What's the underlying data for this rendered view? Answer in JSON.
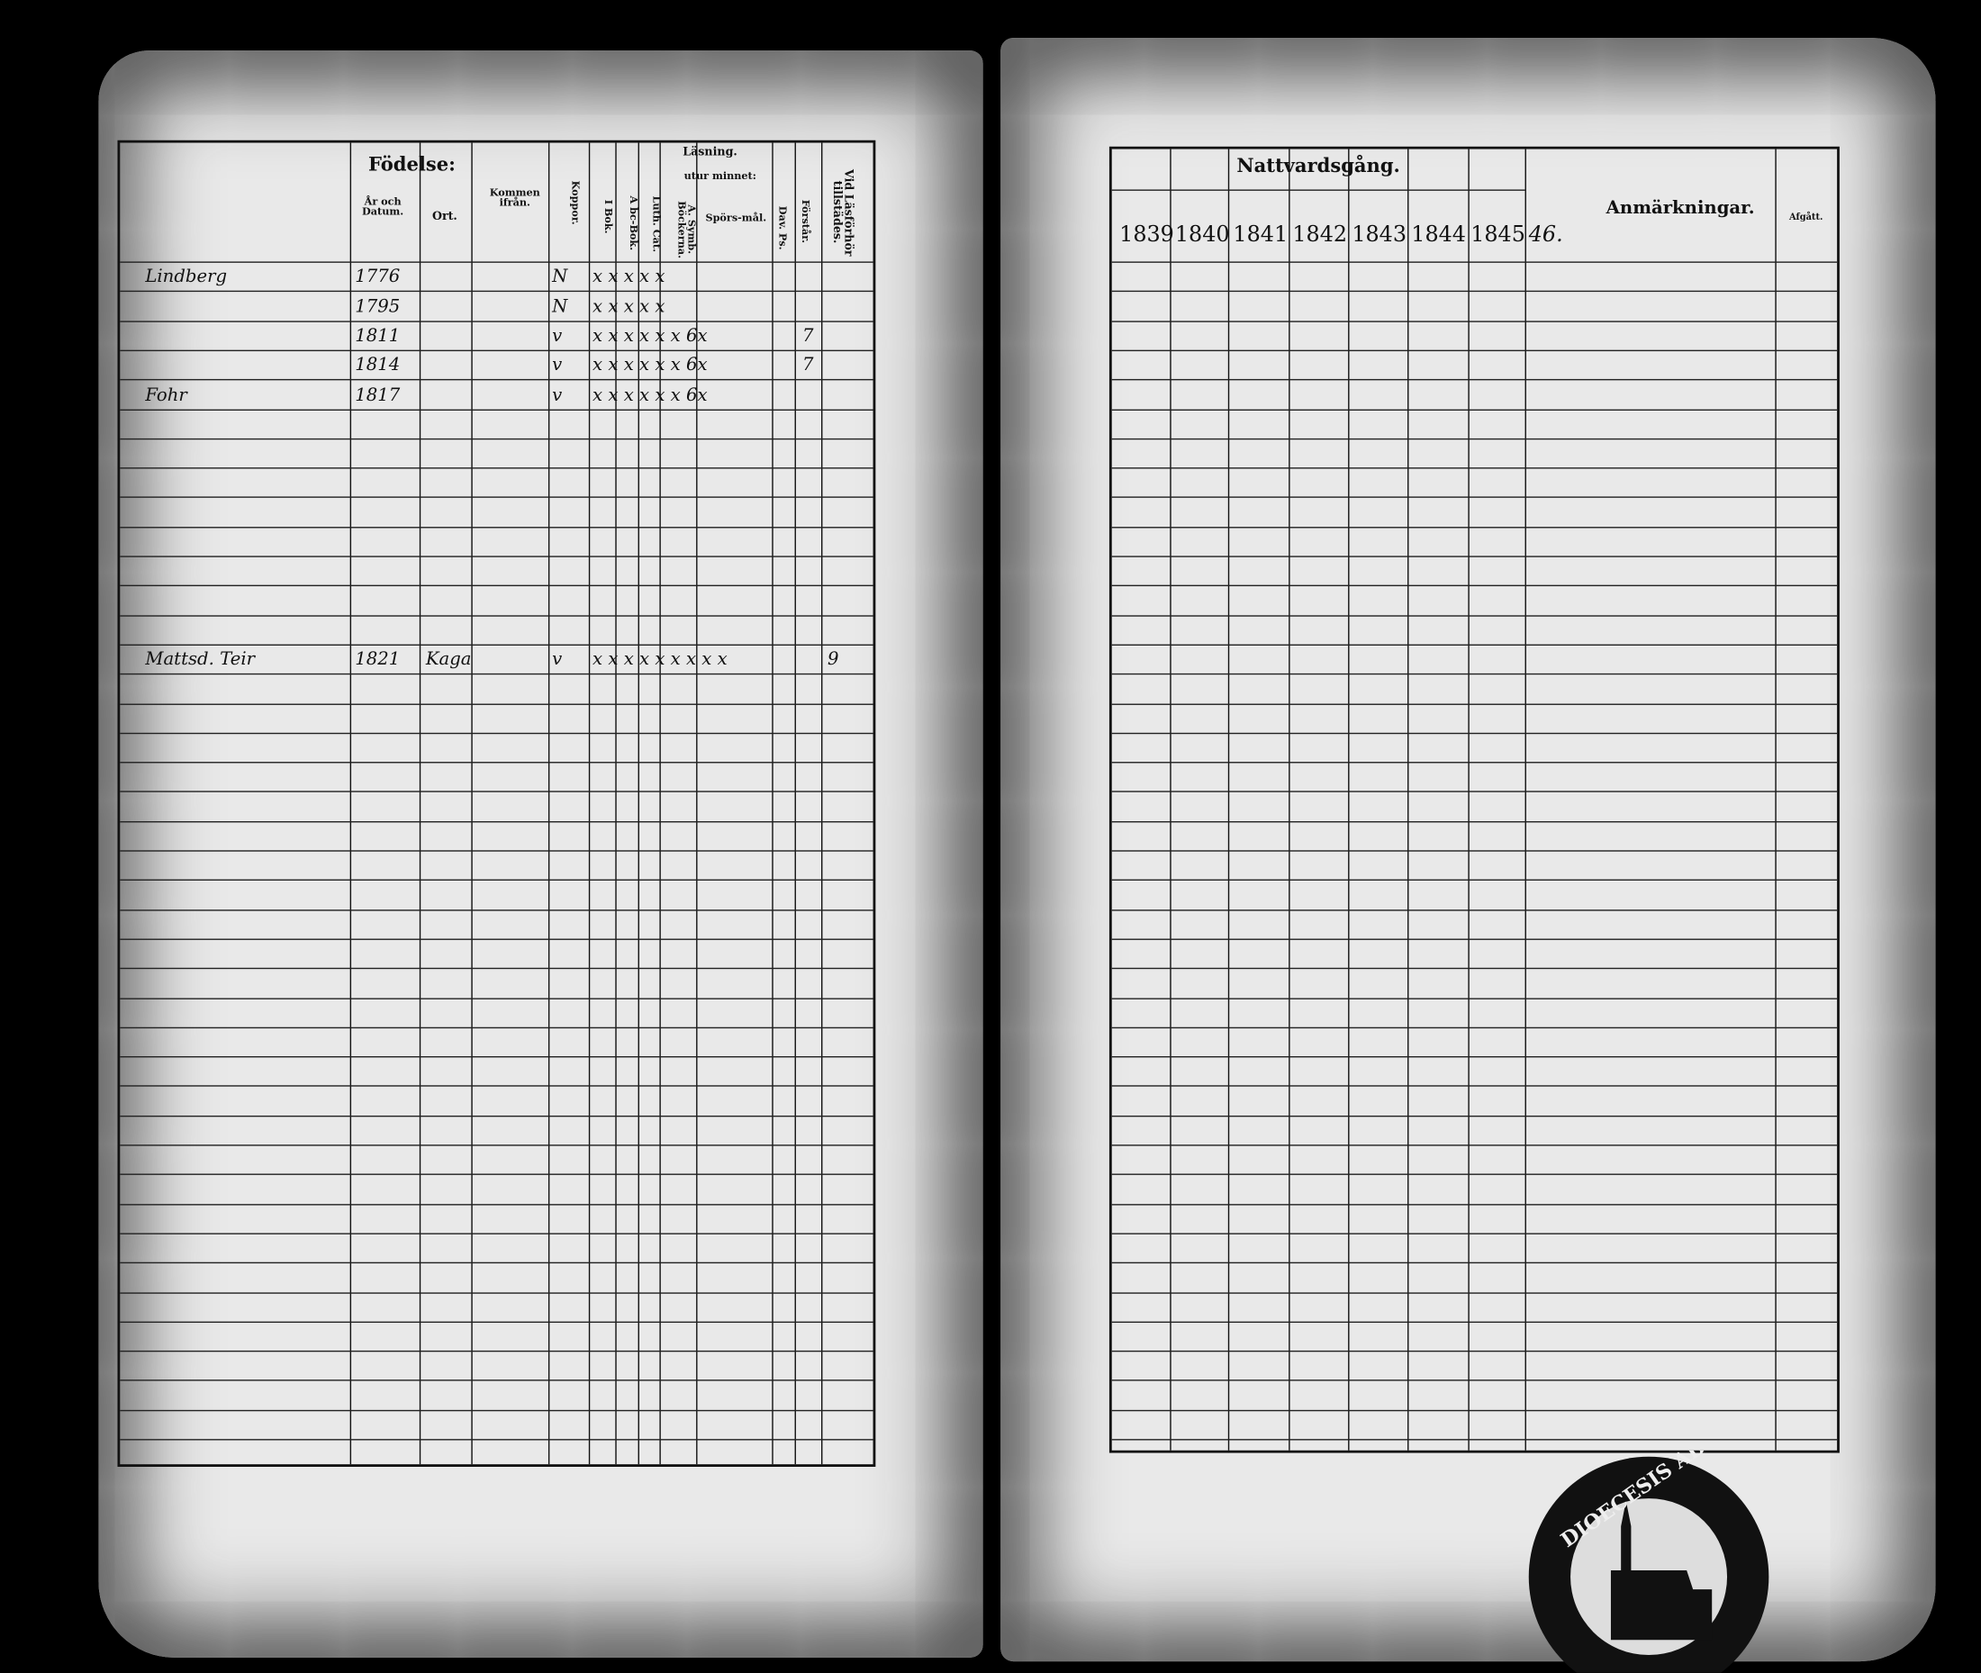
{
  "left_page": {
    "headers": {
      "fodelse": "Födelse:",
      "ar_och_datum": "År och Datum.",
      "ort": "Ort.",
      "kommen_ifran": "Kommen ifrån.",
      "koppor": "Koppor.",
      "lasning": "Läsning.",
      "utur_minnet": "utur minnet:",
      "i_bok": "I Bok.",
      "abc_bok": "A bc-Bok.",
      "luth_cat": "Luth. Cat.",
      "symb_bocker": "A. Symb. Böckerna.",
      "sporsmal": "Spörs-mål.",
      "dav_ps": "Dav. Ps.",
      "forstar": "Förstår.",
      "vid_lasforhor": "Vid Läsförhör tillstädes."
    },
    "entries": [
      {
        "name": "Lindberg",
        "year": "1776",
        "koppor": "N",
        "marks": "x x x x x"
      },
      {
        "name": "",
        "year": "1795",
        "koppor": "N",
        "marks": "x x x x x"
      },
      {
        "name": "",
        "year": "1811",
        "koppor": "v",
        "marks": "x x x x x x 6x",
        "forstar": "7"
      },
      {
        "name": "",
        "year": "1814",
        "koppor": "v",
        "marks": "x x x x x x 6x",
        "forstar": "7"
      },
      {
        "name": "Fohr",
        "year": "1817",
        "koppor": "v",
        "marks": "x x x x x x 6x"
      },
      {
        "name": "Mattsd. Teir",
        "year": "1821",
        "ort": "Kaga",
        "koppor": "v",
        "marks": "x x x x x x x x x",
        "vid": "9"
      }
    ]
  },
  "right_page": {
    "headers": {
      "nattvardsgang": "Nattvardsgång.",
      "years": [
        "1839",
        "1840",
        "1841",
        "1842",
        "1843",
        "1844",
        "1845",
        "46."
      ],
      "anmarkningar": "Anmärkningar.",
      "afgatt": "Afgått."
    },
    "stamp_text": "DIOECESIS ABOENSIS INF"
  }
}
